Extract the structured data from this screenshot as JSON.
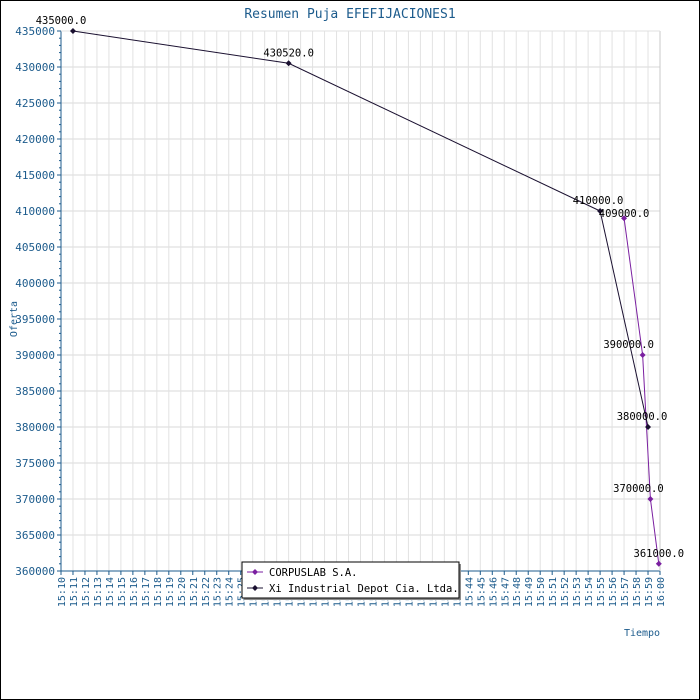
{
  "chart_data": {
    "type": "line",
    "title": "Resumen Puja EFEFIJACIONES1",
    "xlabel": "Tiempo",
    "ylabel": "Oferta",
    "ylim": [
      360000,
      435000
    ],
    "yticks": [
      360000,
      365000,
      370000,
      375000,
      380000,
      385000,
      390000,
      395000,
      400000,
      405000,
      410000,
      415000,
      420000,
      425000,
      430000,
      435000
    ],
    "xlim": [
      "15:10",
      "16:00"
    ],
    "x_tick_labels": [
      "15:10",
      "15:11",
      "15:12",
      "15:13",
      "15:14",
      "15:15",
      "15:16",
      "15:17",
      "15:18",
      "15:19",
      "15:20",
      "15:21",
      "15:22",
      "15:23",
      "15:24",
      "15:25",
      "15:26",
      "15:27",
      "15:28",
      "15:29",
      "15:30",
      "15:31",
      "15:32",
      "15:33",
      "15:34",
      "15:35",
      "15:36",
      "15:37",
      "15:38",
      "15:39",
      "15:40",
      "15:41",
      "15:42",
      "15:43",
      "15:44",
      "15:45",
      "15:46",
      "15:47",
      "15:48",
      "15:49",
      "15:50",
      "15:51",
      "15:52",
      "15:53",
      "15:54",
      "15:55",
      "15:56",
      "15:57",
      "15:58",
      "15:59",
      "16:00"
    ],
    "grid": true,
    "legend_position": "bottom-center",
    "series": [
      {
        "name": "CORPUSLAB S.A.",
        "color": "#7a1fa0",
        "points": [
          {
            "x": "15:57",
            "y": 409000,
            "label": "409000.0"
          },
          {
            "x": "15:59",
            "y": 390000,
            "label": "390000.0"
          },
          {
            "x": "15:59",
            "y": 370000,
            "label": "370000.0"
          },
          {
            "x": "16:00",
            "y": 361000,
            "label": "361000.0"
          }
        ]
      },
      {
        "name": "Xi Industrial Depot Cia. Ltda.",
        "color": "#1a1030",
        "points": [
          {
            "x": "15:11",
            "y": 435000,
            "label": "435000.0"
          },
          {
            "x": "15:29",
            "y": 430520,
            "label": "430520.0"
          },
          {
            "x": "15:55",
            "y": 410000,
            "label": "410000.0"
          },
          {
            "x": "15:59",
            "y": 380000,
            "label": "380000.0"
          }
        ]
      }
    ]
  }
}
